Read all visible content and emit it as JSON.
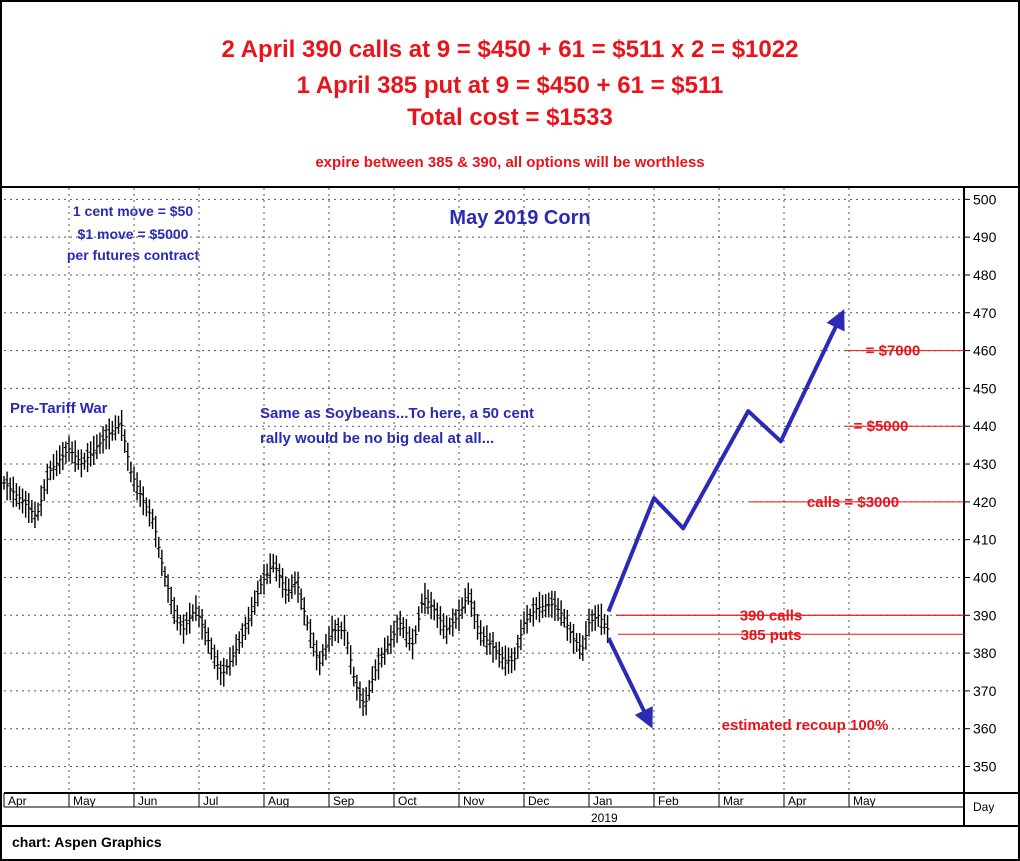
{
  "header": {
    "line1": "2 April 390 calls at 9 = $450 + 61 = $511 x 2 = $1022",
    "line2": "1 April 385 put at 9 = $450 + 61 = $511",
    "line3": "Total cost = $1533",
    "line4": "expire between 385 & 390, all options will be worthless"
  },
  "footer": {
    "credit": "chart: Aspen Graphics"
  },
  "colors": {
    "red": "#e8141b",
    "blue": "#2a2ab4",
    "grid": "#555555",
    "black": "#000000"
  },
  "chart_data": {
    "type": "bar",
    "title": "May 2019 Corn",
    "ylim": [
      343,
      503
    ],
    "yticks": [
      350,
      360,
      370,
      380,
      390,
      400,
      410,
      420,
      430,
      440,
      450,
      460,
      470,
      480,
      490,
      500
    ],
    "y_unit_label": "Day",
    "months": [
      {
        "label": "Apr",
        "t": 0
      },
      {
        "label": "May",
        "t": 1
      },
      {
        "label": "Jun",
        "t": 2
      },
      {
        "label": "Jul",
        "t": 3
      },
      {
        "label": "Aug",
        "t": 4
      },
      {
        "label": "Sep",
        "t": 5
      },
      {
        "label": "Oct",
        "t": 6
      },
      {
        "label": "Nov",
        "t": 7
      },
      {
        "label": "Dec",
        "t": 8
      },
      {
        "label": "Jan",
        "t": 9
      },
      {
        "label": "Feb",
        "t": 10
      },
      {
        "label": "Mar",
        "t": 11
      },
      {
        "label": "Apr",
        "t": 12
      },
      {
        "label": "May",
        "t": 13
      }
    ],
    "year_label": "2019",
    "price_path": [
      [
        0.0,
        425
      ],
      [
        0.3,
        420
      ],
      [
        0.5,
        416
      ],
      [
        0.7,
        428
      ],
      [
        1.0,
        434
      ],
      [
        1.2,
        430
      ],
      [
        1.5,
        436
      ],
      [
        1.8,
        441
      ],
      [
        1.95,
        428
      ],
      [
        2.15,
        420
      ],
      [
        2.3,
        415
      ],
      [
        2.45,
        402
      ],
      [
        2.6,
        392
      ],
      [
        2.75,
        386
      ],
      [
        2.95,
        392
      ],
      [
        3.15,
        383
      ],
      [
        3.35,
        374
      ],
      [
        3.55,
        380
      ],
      [
        3.75,
        388
      ],
      [
        3.95,
        398
      ],
      [
        4.15,
        404
      ],
      [
        4.35,
        396
      ],
      [
        4.5,
        399
      ],
      [
        4.65,
        389
      ],
      [
        4.85,
        377
      ],
      [
        5.05,
        386
      ],
      [
        5.25,
        386
      ],
      [
        5.4,
        372
      ],
      [
        5.55,
        366
      ],
      [
        5.7,
        375
      ],
      [
        5.9,
        382
      ],
      [
        6.1,
        388
      ],
      [
        6.3,
        382
      ],
      [
        6.45,
        395
      ],
      [
        6.6,
        392
      ],
      [
        6.8,
        386
      ],
      [
        7.0,
        390
      ],
      [
        7.15,
        396
      ],
      [
        7.3,
        386
      ],
      [
        7.5,
        382
      ],
      [
        7.7,
        378
      ],
      [
        7.85,
        378
      ],
      [
        8.0,
        388
      ],
      [
        8.2,
        392
      ],
      [
        8.45,
        393
      ],
      [
        8.6,
        390
      ],
      [
        8.75,
        384
      ],
      [
        8.9,
        381
      ],
      [
        9.0,
        388
      ],
      [
        9.15,
        390
      ],
      [
        9.3,
        386
      ]
    ],
    "scenario_up": [
      [
        9.3,
        391
      ],
      [
        10.0,
        421
      ],
      [
        10.45,
        413
      ],
      [
        11.45,
        444
      ],
      [
        11.95,
        436
      ],
      [
        12.9,
        470
      ]
    ],
    "scenario_down": [
      [
        9.3,
        384
      ],
      [
        9.95,
        361
      ]
    ],
    "levels": [
      {
        "value": 460,
        "label": "= $7000"
      },
      {
        "value": 440,
        "label": "= $5000"
      },
      {
        "value": 420,
        "label": "calls = $3000"
      },
      {
        "value": 390,
        "label": "390 calls"
      },
      {
        "value": 385,
        "label": "385 puts"
      },
      {
        "value": 361,
        "label": "estimated recoup 100%"
      }
    ],
    "annotations": {
      "pre_tariff": "Pre-Tariff War",
      "same_as_1": "Same as Soybeans...To here, a 50 cent",
      "same_as_2": "rally would be no big deal at all...",
      "move_1": "1 cent move = $50",
      "move_2": "$1 move = $5000",
      "move_3": "per futures contract"
    }
  }
}
